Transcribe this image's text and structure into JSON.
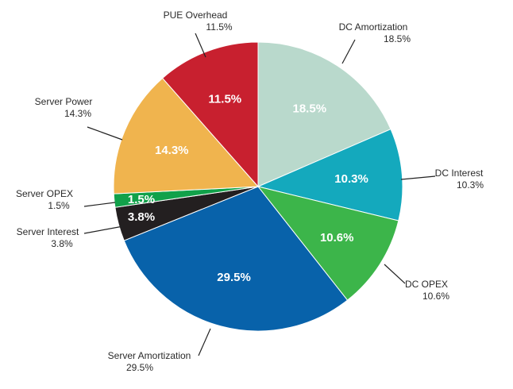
{
  "chart_data": {
    "type": "pie",
    "title": "",
    "start": "12 o'clock",
    "direction": "clockwise",
    "slices": [
      {
        "name": "DC Amortization",
        "value": 18.5,
        "label": "18.5%",
        "color": "#b9d9cc"
      },
      {
        "name": "DC Interest",
        "value": 10.3,
        "label": "10.3%",
        "color": "#14a9bd"
      },
      {
        "name": "DC OPEX",
        "value": 10.6,
        "label": "10.6%",
        "color": "#3cb54a"
      },
      {
        "name": "Server Amortization",
        "value": 29.5,
        "label": "29.5%",
        "color": "#0862aa"
      },
      {
        "name": "Server Interest",
        "value": 3.8,
        "label": "3.8%",
        "color": "#231f20"
      },
      {
        "name": "Server OPEX",
        "value": 1.5,
        "label": "1.5%",
        "color": "#11a14a"
      },
      {
        "name": "Server Power",
        "value": 14.3,
        "label": "14.3%",
        "color": "#f0b44e"
      },
      {
        "name": "PUE Overhead",
        "value": 11.5,
        "label": "11.5%",
        "color": "#c8202f"
      }
    ]
  }
}
